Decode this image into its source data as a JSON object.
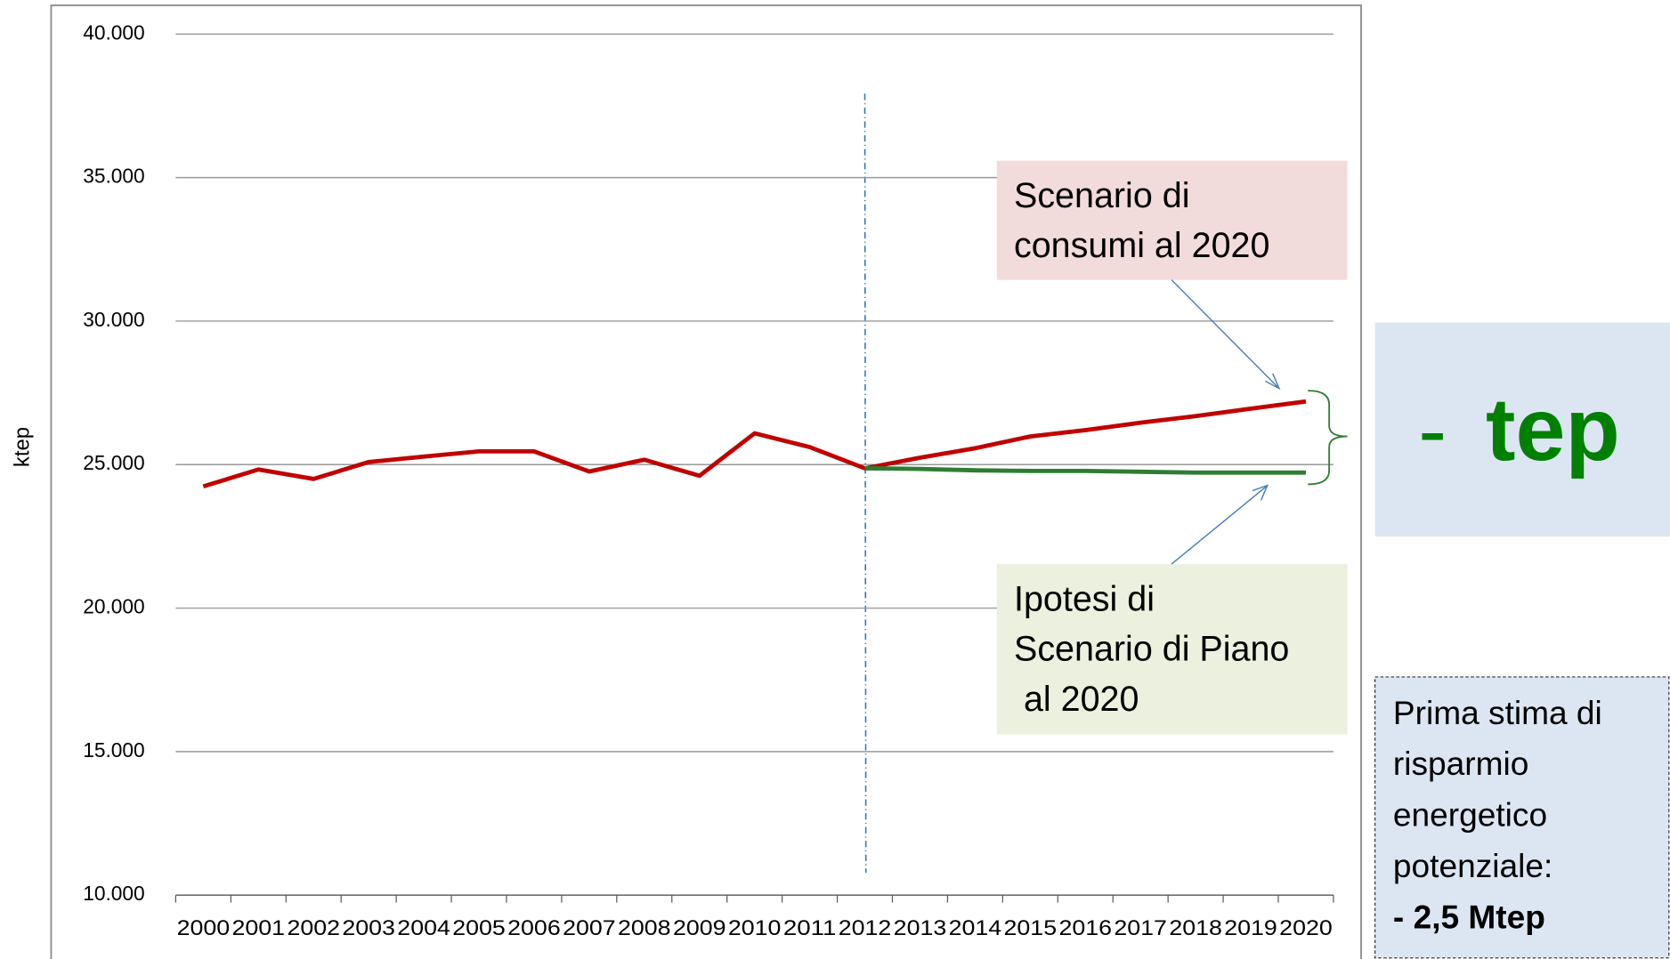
{
  "chart_data": {
    "type": "line",
    "ylabel": "ktep",
    "categories": [
      "2000",
      "2001",
      "2002",
      "2003",
      "2004",
      "2005",
      "2006",
      "2007",
      "2008",
      "2009",
      "2010",
      "2011",
      "2012",
      "2013",
      "2014",
      "2015",
      "2016",
      "2017",
      "2018",
      "2019",
      "2020"
    ],
    "series": [
      {
        "color": "#c00000",
        "values": [
          24240,
          24830,
          24500,
          25090,
          25280,
          25460,
          25460,
          24760,
          25170,
          24610,
          26090,
          25610,
          24870,
          25240,
          25570,
          25980,
          26200,
          26460,
          26690,
          26950,
          27200
        ]
      },
      {
        "color": "#2e7d32",
        "values": [
          null,
          null,
          null,
          null,
          null,
          null,
          null,
          null,
          null,
          null,
          null,
          null,
          24870,
          24850,
          24800,
          24780,
          24780,
          24750,
          24720,
          24720,
          24720
        ]
      }
    ],
    "ylim": [
      10000,
      40000
    ],
    "yticks": [
      {
        "value": 10000,
        "label": "10.000"
      },
      {
        "value": 15000,
        "label": "15.000"
      },
      {
        "value": 20000,
        "label": "20.000"
      },
      {
        "value": 25000,
        "label": "25.000"
      },
      {
        "value": 30000,
        "label": "30.000"
      },
      {
        "value": 35000,
        "label": "35.000"
      },
      {
        "value": 40000,
        "label": "40.000"
      }
    ],
    "grid": true,
    "annotations": [
      {
        "lines": [
          "Scenario di",
          "consumi al 2020"
        ]
      },
      {
        "lines": [
          "Ipotesi di",
          "Scenario di Piano",
          " al 2020"
        ]
      }
    ]
  },
  "side_panel": {
    "headline_dash": "-",
    "headline_word": "tep",
    "note_lines": [
      "Prima stima di",
      "risparmio",
      "energetico",
      "potenziale:"
    ],
    "note_bold": "- 2,5 Mtep"
  }
}
